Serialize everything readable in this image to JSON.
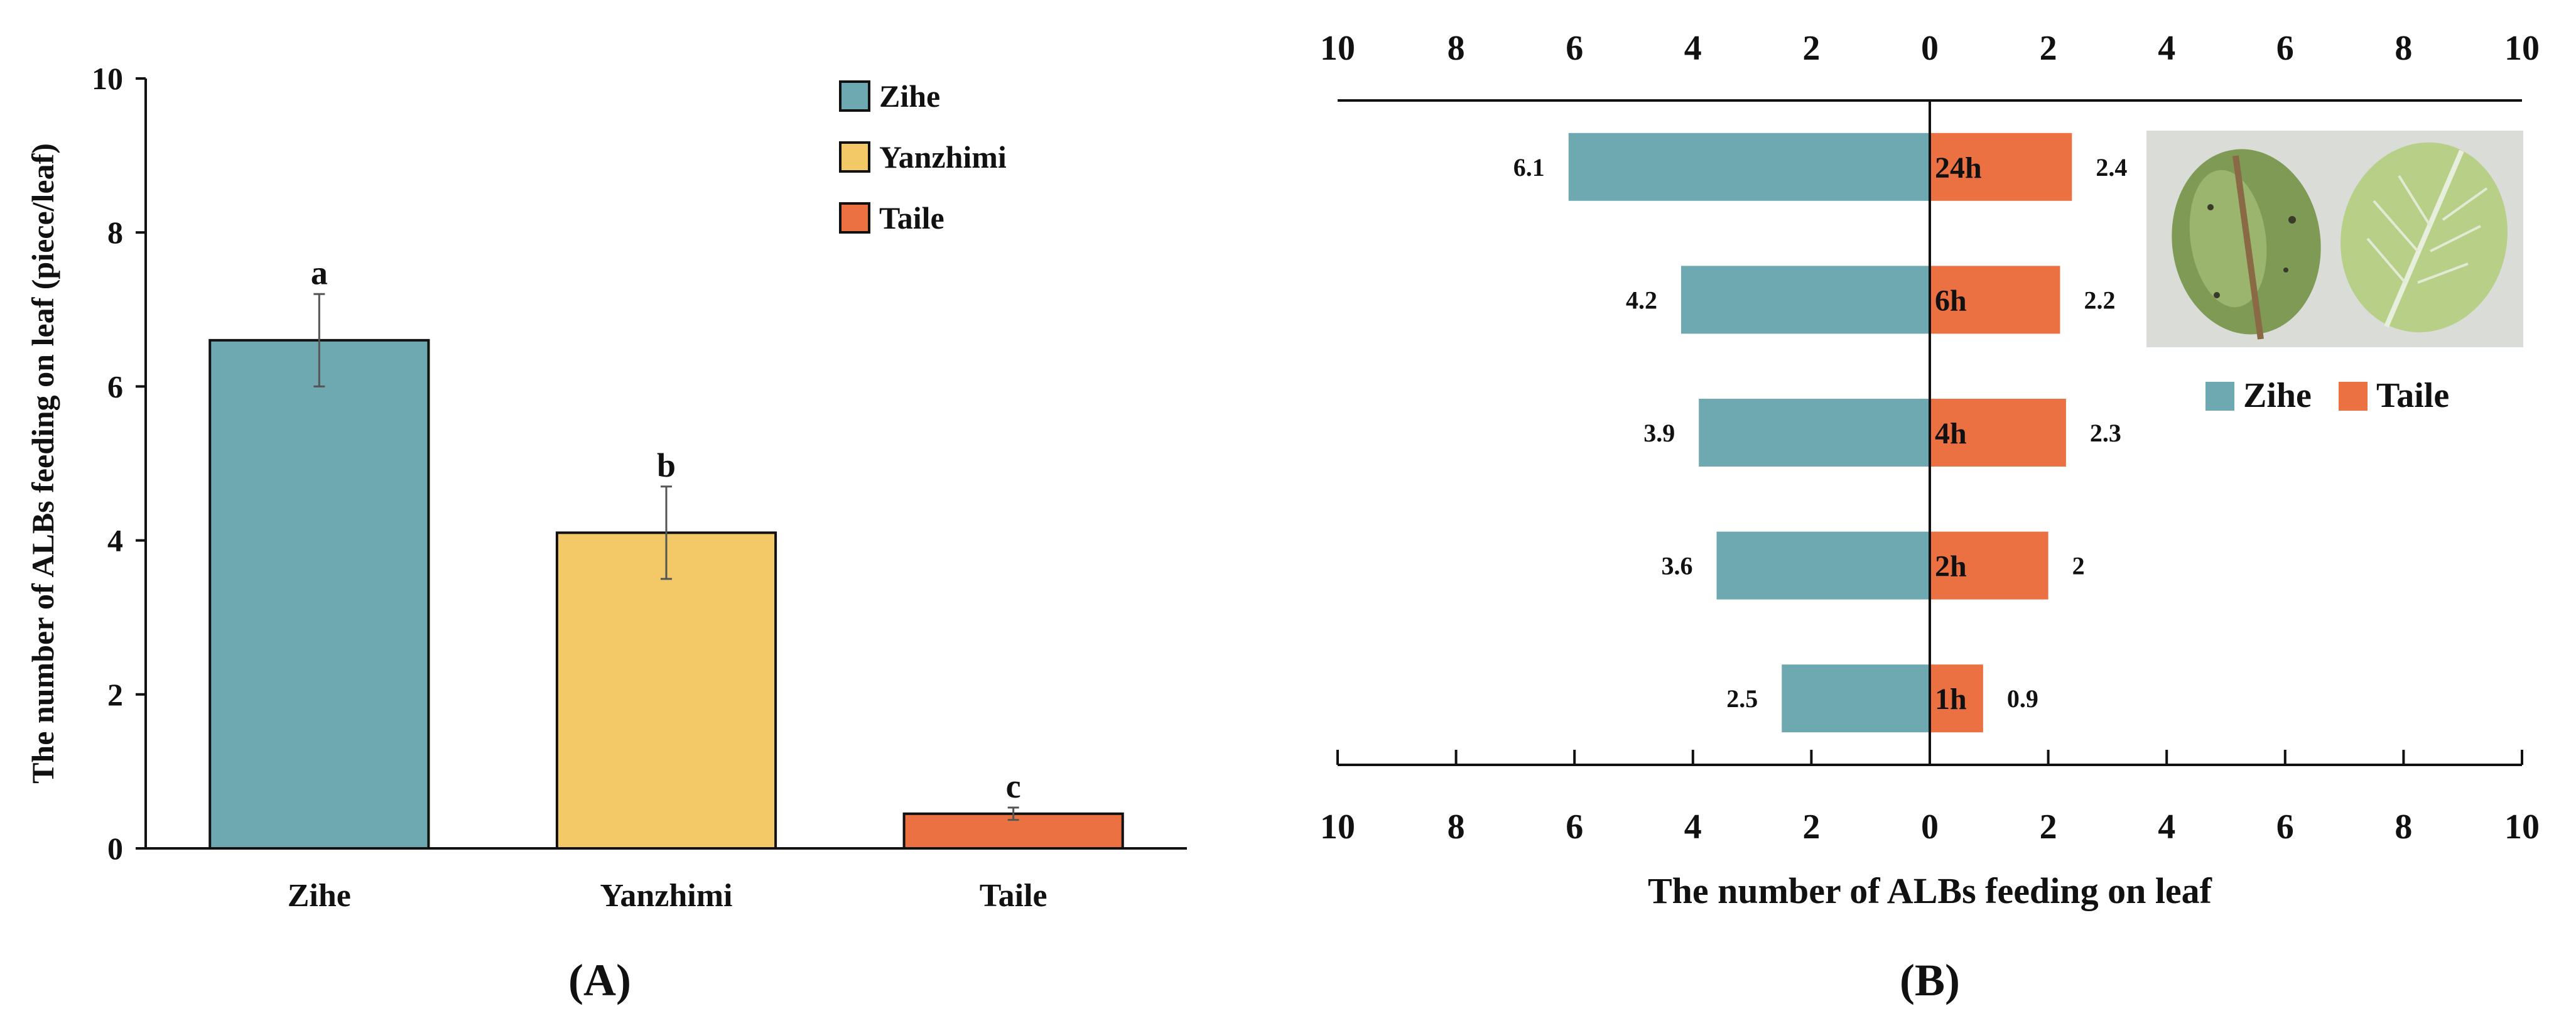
{
  "colors": {
    "zihe": "#6ea8b0",
    "yanzhimi": "#f2c966",
    "taile": "#ec7142",
    "leaf_bg": "#dadcd8",
    "leaf_dark": "#7e9a55",
    "leaf_light": "#b8cf88"
  },
  "chart_data": [
    {
      "type": "bar",
      "panel_label": "(A)",
      "categories": [
        "Zihe",
        "Yanzhimi",
        "Taile"
      ],
      "values": [
        6.6,
        4.1,
        0.45
      ],
      "error": [
        0.6,
        0.6,
        0.08
      ],
      "letters": [
        "a",
        "b",
        "c"
      ],
      "ylabel": "The number of ALBs feeding on leaf (piece/leaf)",
      "xlabel": "",
      "ylim": [
        0,
        10
      ],
      "yticks": [
        "0",
        "2",
        "4",
        "6",
        "8",
        "10"
      ],
      "legend": [
        "Zihe",
        "Yanzhimi",
        "Taile"
      ],
      "legend_position": "top-right",
      "colors": [
        "#6ea8b0",
        "#f2c966",
        "#ec7142"
      ]
    },
    {
      "type": "bar",
      "orientation": "horizontal-diverging",
      "panel_label": "(B)",
      "categories": [
        "24h",
        "6h",
        "4h",
        "2h",
        "1h"
      ],
      "series": [
        {
          "name": "Zihe",
          "values": [
            6.1,
            4.2,
            3.9,
            3.6,
            2.5
          ],
          "labels": [
            "6.1",
            "4.2",
            "3.9",
            "3.6",
            "2.5"
          ]
        },
        {
          "name": "Taile",
          "values": [
            2.4,
            2.2,
            2.3,
            2.0,
            0.9
          ],
          "labels": [
            "2.4",
            "2.2",
            "2.3",
            "2",
            "0.9"
          ]
        }
      ],
      "xlabel": "The number of ALBs feeding on leaf",
      "xlim": [
        -10,
        10
      ],
      "xticks": [
        "10",
        "8",
        "6",
        "4",
        "2",
        "0",
        "2",
        "4",
        "6",
        "8",
        "10"
      ],
      "legend": [
        "Zihe",
        "Taile"
      ],
      "legend_position": "right",
      "colors": [
        "#6ea8b0",
        "#ec7142"
      ]
    }
  ]
}
